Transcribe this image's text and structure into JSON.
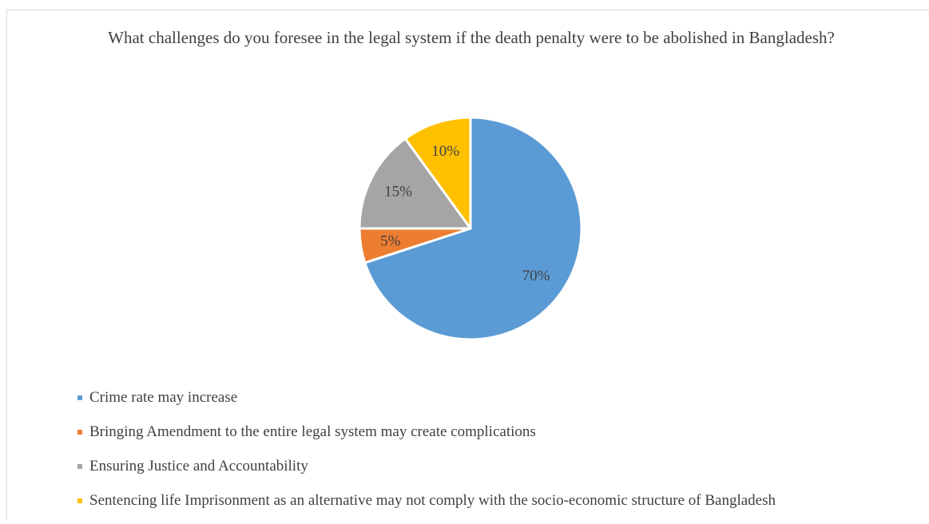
{
  "chart_data": {
    "type": "pie",
    "title": "What challenges do you foresee in the legal system if the death penalty were to be abolished in Bangladesh?",
    "slices": [
      {
        "name": "Crime rate may increase",
        "value": 70,
        "label": "70%",
        "color": "#5b9bd5"
      },
      {
        "name": "Bringing Amendment to the entire legal system may create complications",
        "value": 5,
        "label": "5%",
        "color": "#ed7d31"
      },
      {
        "name": "Ensuring Justice and Accountability",
        "value": 15,
        "label": "15%",
        "color": "#a5a5a5"
      },
      {
        "name": "Sentencing life Imprisonment as an alternative may not comply with the socio-economic structure of Bangladesh",
        "value": 10,
        "label": "10%",
        "color": "#ffc000"
      }
    ],
    "legend_position": "bottom-left"
  }
}
